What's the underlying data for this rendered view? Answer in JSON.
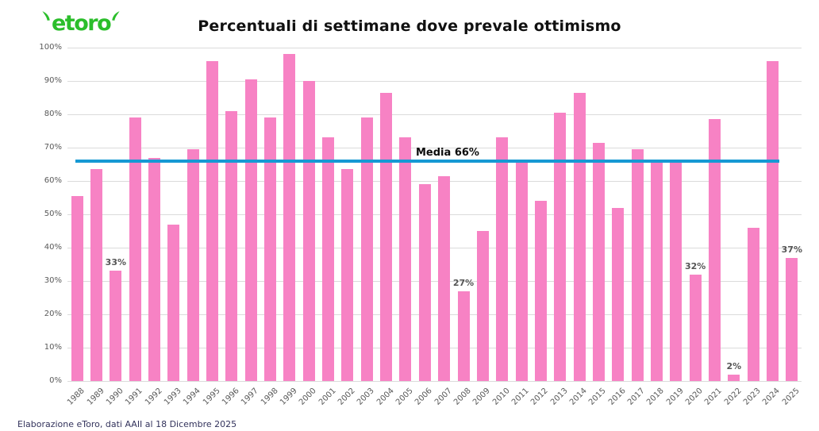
{
  "logo": {
    "text": "etoro"
  },
  "footer": {
    "source_note": "Elaborazione eToro, dati AAII al 18 Dicembre 2025"
  },
  "colors": {
    "brand_green": "#2BBE2B",
    "bar_pink": "#F782C4",
    "mean_line_blue": "#1699D4",
    "gridline_gray": "#DBDBDB",
    "tick_text_gray": "#595959",
    "bar_label_gray": "#555555"
  },
  "chart_data": {
    "type": "bar",
    "title": "Percentuali di settimane dove prevale ottimismo",
    "categories": [
      "1988",
      "1989",
      "1990",
      "1991",
      "1992",
      "1993",
      "1994",
      "1995",
      "1996",
      "1997",
      "1998",
      "1999",
      "2000",
      "2001",
      "2002",
      "2003",
      "2004",
      "2005",
      "2006",
      "2007",
      "2008",
      "2009",
      "2010",
      "2011",
      "2012",
      "2013",
      "2014",
      "2015",
      "2016",
      "2017",
      "2018",
      "2019",
      "2020",
      "2021",
      "2022",
      "2023",
      "2024",
      "2025"
    ],
    "values": [
      55.5,
      63.5,
      33,
      79,
      67,
      47,
      69.5,
      96,
      81,
      90.5,
      79,
      98,
      90,
      73,
      63.5,
      79,
      86.5,
      73,
      59,
      61.5,
      27,
      45,
      73,
      65.5,
      54,
      80.5,
      86.5,
      71.5,
      52,
      69.5,
      65.5,
      65.5,
      32,
      78.5,
      2,
      46,
      96,
      37
    ],
    "bar_labels": {
      "1990": "33%",
      "2008": "27%",
      "2020": "32%",
      "2022": "2%",
      "2025": "37%"
    },
    "mean_line": {
      "value": 66,
      "label": "Media 66%"
    },
    "ylim": [
      0,
      100
    ],
    "yticks": [
      {
        "value": 0,
        "label": "0%"
      },
      {
        "value": 10,
        "label": "10%"
      },
      {
        "value": 20,
        "label": "20%"
      },
      {
        "value": 30,
        "label": "30%"
      },
      {
        "value": 40,
        "label": "40%"
      },
      {
        "value": 50,
        "label": "50%"
      },
      {
        "value": 60,
        "label": "60%"
      },
      {
        "value": 70,
        "label": "70%"
      },
      {
        "value": 80,
        "label": "80%"
      },
      {
        "value": 90,
        "label": "90%"
      },
      {
        "value": 100,
        "label": "100%"
      }
    ],
    "xlabel": "",
    "ylabel": "",
    "legend": "none",
    "grid": true
  }
}
